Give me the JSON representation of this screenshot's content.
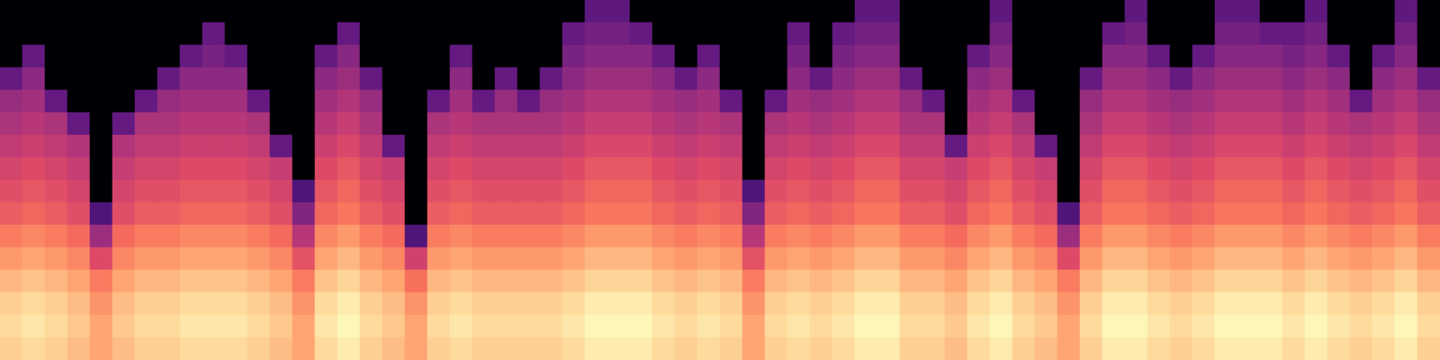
{
  "chart_data": {
    "type": "heatmap",
    "tick_labels": false,
    "xlim": [
      0,
      64
    ],
    "ylim": [
      0,
      16
    ],
    "zlim": [
      -80,
      0
    ],
    "cells": [
      [
        -80,
        -80,
        -80,
        -80,
        -80,
        -80,
        -80,
        -80,
        -80,
        -80,
        -80,
        -80,
        -80,
        -80,
        -80,
        -80,
        -80,
        -80,
        -80,
        -80,
        -80,
        -80,
        -80,
        -80,
        -80,
        -80,
        -57,
        -57,
        -80,
        -80,
        -80,
        -80,
        -80,
        -80,
        -80,
        -80,
        -80,
        -80,
        -57,
        -57,
        -80,
        -80,
        -80,
        -80,
        -57,
        -80,
        -80,
        -80,
        -80,
        -80,
        -57,
        -80,
        -80,
        -80,
        -57,
        -57,
        -80,
        -80,
        -57,
        -80,
        -80,
        -80,
        -57,
        -80
      ],
      [
        -80,
        -80,
        -80,
        -80,
        -80,
        -80,
        -80,
        -80,
        -80,
        -56,
        -80,
        -80,
        -80,
        -80,
        -80,
        -56,
        -80,
        -80,
        -80,
        -80,
        -80,
        -80,
        -80,
        -80,
        -80,
        -56,
        -53,
        -53,
        -56,
        -80,
        -80,
        -80,
        -80,
        -80,
        -80,
        -56,
        -80,
        -56,
        -53,
        -53,
        -80,
        -80,
        -80,
        -80,
        -53,
        -80,
        -80,
        -80,
        -80,
        -56,
        -53,
        -80,
        -80,
        -80,
        -53,
        -53,
        -56,
        -56,
        -53,
        -80,
        -80,
        -80,
        -53,
        -80
      ],
      [
        -80,
        -56,
        -80,
        -80,
        -80,
        -80,
        -80,
        -80,
        -56,
        -52,
        -56,
        -80,
        -80,
        -80,
        -56,
        -49,
        -80,
        -80,
        -80,
        -80,
        -56,
        -80,
        -80,
        -80,
        -80,
        -52,
        -49,
        -49,
        -49,
        -56,
        -80,
        -56,
        -80,
        -80,
        -80,
        -52,
        -80,
        -52,
        -49,
        -49,
        -80,
        -80,
        -80,
        -56,
        -49,
        -80,
        -80,
        -80,
        -80,
        -49,
        -49,
        -56,
        -80,
        -56,
        -49,
        -49,
        -49,
        -52,
        -49,
        -56,
        -80,
        -56,
        -49,
        -80
      ],
      [
        -56,
        -48,
        -80,
        -80,
        -80,
        -80,
        -80,
        -56,
        -48,
        -48,
        -48,
        -80,
        -80,
        -80,
        -48,
        -45,
        -56,
        -80,
        -80,
        -80,
        -48,
        -80,
        -56,
        -80,
        -56,
        -48,
        -45,
        -45,
        -45,
        -48,
        -56,
        -48,
        -80,
        -80,
        -80,
        -48,
        -56,
        -48,
        -45,
        -45,
        -56,
        -80,
        -80,
        -48,
        -45,
        -80,
        -80,
        -80,
        -56,
        -45,
        -45,
        -48,
        -56,
        -48,
        -45,
        -45,
        -45,
        -48,
        -45,
        -48,
        -80,
        -48,
        -45,
        -56
      ],
      [
        -46,
        -44,
        -56,
        -80,
        -80,
        -80,
        -56,
        -46,
        -44,
        -44,
        -44,
        -56,
        -80,
        -80,
        -44,
        -41,
        -46,
        -80,
        -80,
        -56,
        -44,
        -56,
        -46,
        -56,
        -46,
        -44,
        -41,
        -41,
        -41,
        -44,
        -46,
        -44,
        -56,
        -80,
        -56,
        -44,
        -46,
        -44,
        -41,
        -41,
        -46,
        -56,
        -80,
        -44,
        -41,
        -56,
        -80,
        -80,
        -46,
        -41,
        -41,
        -44,
        -46,
        -44,
        -41,
        -41,
        -41,
        -44,
        -41,
        -44,
        -56,
        -44,
        -41,
        -46
      ],
      [
        -42,
        -40,
        -42,
        -56,
        -80,
        -56,
        -42,
        -42,
        -40,
        -40,
        -40,
        -42,
        -80,
        -80,
        -40,
        -37,
        -42,
        -80,
        -80,
        -42,
        -40,
        -42,
        -42,
        -42,
        -42,
        -40,
        -37,
        -37,
        -37,
        -40,
        -42,
        -40,
        -42,
        -80,
        -42,
        -40,
        -42,
        -40,
        -37,
        -37,
        -42,
        -42,
        -80,
        -40,
        -37,
        -42,
        -80,
        -80,
        -42,
        -37,
        -37,
        -40,
        -42,
        -40,
        -37,
        -37,
        -37,
        -40,
        -37,
        -40,
        -42,
        -40,
        -37,
        -42
      ],
      [
        -38,
        -36,
        -38,
        -41,
        -80,
        -41,
        -38,
        -38,
        -36,
        -36,
        -36,
        -38,
        -56,
        -80,
        -36,
        -33,
        -38,
        -56,
        -80,
        -38,
        -36,
        -38,
        -38,
        -38,
        -38,
        -36,
        -33,
        -33,
        -33,
        -36,
        -38,
        -36,
        -38,
        -80,
        -38,
        -36,
        -38,
        -36,
        -33,
        -33,
        -38,
        -38,
        -56,
        -36,
        -33,
        -38,
        -56,
        -80,
        -38,
        -33,
        -33,
        -36,
        -38,
        -36,
        -33,
        -33,
        -33,
        -36,
        -33,
        -36,
        -38,
        -36,
        -33,
        -38
      ],
      [
        -34,
        -32,
        -34,
        -37,
        -80,
        -37,
        -34,
        -34,
        -32,
        -32,
        -32,
        -34,
        -37,
        -80,
        -32,
        -29,
        -34,
        -37,
        -80,
        -34,
        -32,
        -34,
        -34,
        -34,
        -34,
        -32,
        -29,
        -29,
        -29,
        -32,
        -34,
        -32,
        -34,
        -80,
        -34,
        -32,
        -34,
        -32,
        -29,
        -29,
        -34,
        -34,
        -37,
        -32,
        -29,
        -34,
        -37,
        -80,
        -34,
        -29,
        -29,
        -32,
        -34,
        -32,
        -29,
        -29,
        -29,
        -32,
        -29,
        -32,
        -34,
        -32,
        -29,
        -34
      ],
      [
        -31,
        -29,
        -31,
        -34,
        -80,
        -34,
        -31,
        -31,
        -29,
        -29,
        -29,
        -31,
        -34,
        -60,
        -29,
        -26,
        -31,
        -34,
        -80,
        -31,
        -29,
        -31,
        -31,
        -31,
        -31,
        -29,
        -26,
        -26,
        -26,
        -29,
        -31,
        -29,
        -31,
        -60,
        -31,
        -29,
        -31,
        -29,
        -26,
        -26,
        -31,
        -31,
        -34,
        -29,
        -26,
        -31,
        -34,
        -80,
        -31,
        -26,
        -26,
        -29,
        -31,
        -29,
        -26,
        -26,
        -26,
        -29,
        -26,
        -29,
        -31,
        -29,
        -26,
        -31
      ],
      [
        -28,
        -26,
        -28,
        -31,
        -60,
        -31,
        -28,
        -28,
        -26,
        -26,
        -26,
        -28,
        -31,
        -50,
        -26,
        -23,
        -28,
        -31,
        -80,
        -28,
        -26,
        -28,
        -28,
        -28,
        -28,
        -26,
        -23,
        -23,
        -23,
        -26,
        -28,
        -26,
        -28,
        -50,
        -28,
        -26,
        -28,
        -26,
        -23,
        -23,
        -28,
        -28,
        -31,
        -26,
        -23,
        -28,
        -31,
        -60,
        -28,
        -23,
        -23,
        -26,
        -28,
        -26,
        -23,
        -23,
        -23,
        -26,
        -23,
        -26,
        -28,
        -26,
        -23,
        -28
      ],
      [
        -22,
        -20,
        -22,
        -25,
        -45,
        -25,
        -22,
        -22,
        -20,
        -20,
        -20,
        -22,
        -25,
        -40,
        -20,
        -17,
        -22,
        -25,
        -60,
        -22,
        -20,
        -22,
        -22,
        -22,
        -22,
        -20,
        -17,
        -17,
        -17,
        -20,
        -22,
        -20,
        -22,
        -40,
        -22,
        -20,
        -22,
        -20,
        -17,
        -17,
        -22,
        -22,
        -25,
        -20,
        -17,
        -22,
        -25,
        -45,
        -22,
        -17,
        -17,
        -20,
        -22,
        -20,
        -17,
        -17,
        -17,
        -20,
        -17,
        -20,
        -22,
        -20,
        -17,
        -22
      ],
      [
        -17,
        -15,
        -17,
        -20,
        -32,
        -20,
        -17,
        -17,
        -15,
        -15,
        -15,
        -17,
        -20,
        -30,
        -15,
        -12,
        -17,
        -20,
        -35,
        -17,
        -15,
        -17,
        -17,
        -17,
        -17,
        -15,
        -12,
        -12,
        -12,
        -15,
        -17,
        -15,
        -17,
        -30,
        -17,
        -15,
        -17,
        -15,
        -12,
        -12,
        -17,
        -17,
        -20,
        -15,
        -12,
        -17,
        -20,
        -32,
        -17,
        -12,
        -12,
        -15,
        -17,
        -15,
        -12,
        -12,
        -12,
        -15,
        -12,
        -15,
        -17,
        -15,
        -12,
        -17
      ],
      [
        -12,
        -10,
        -12,
        -15,
        -22,
        -15,
        -12,
        -12,
        -10,
        -10,
        -10,
        -12,
        -15,
        -22,
        -10,
        -7,
        -12,
        -15,
        -24,
        -12,
        -10,
        -12,
        -12,
        -12,
        -12,
        -10,
        -7,
        -7,
        -7,
        -10,
        -12,
        -10,
        -12,
        -22,
        -12,
        -10,
        -12,
        -10,
        -7,
        -7,
        -12,
        -12,
        -15,
        -10,
        -7,
        -12,
        -15,
        -22,
        -12,
        -7,
        -7,
        -10,
        -12,
        -10,
        -7,
        -7,
        -7,
        -10,
        -7,
        -10,
        -12,
        -10,
        -7,
        -12
      ],
      [
        -8,
        -6,
        -8,
        -11,
        -18,
        -11,
        -8,
        -8,
        -6,
        -6,
        -6,
        -8,
        -11,
        -18,
        -6,
        -3,
        -8,
        -11,
        -18,
        -8,
        -6,
        -8,
        -8,
        -8,
        -8,
        -6,
        -3,
        -3,
        -3,
        -6,
        -8,
        -6,
        -8,
        -18,
        -8,
        -6,
        -8,
        -6,
        -3,
        -3,
        -8,
        -8,
        -11,
        -6,
        -3,
        -8,
        -11,
        -18,
        -8,
        -3,
        -3,
        -6,
        -8,
        -6,
        -3,
        -3,
        -3,
        -6,
        -3,
        -6,
        -8,
        -6,
        -3,
        -8
      ],
      [
        -6,
        -4,
        -6,
        -9,
        -15,
        -9,
        -6,
        -6,
        -4,
        -4,
        -4,
        -6,
        -9,
        -15,
        -4,
        -1,
        -6,
        -9,
        -15,
        -6,
        -4,
        -6,
        -6,
        -6,
        -6,
        -4,
        -1,
        -1,
        -1,
        -4,
        -6,
        -4,
        -6,
        -15,
        -6,
        -4,
        -6,
        -4,
        -1,
        -1,
        -6,
        -6,
        -9,
        -4,
        -1,
        -6,
        -9,
        -15,
        -6,
        -1,
        -1,
        -4,
        -6,
        -4,
        -1,
        -1,
        -1,
        -4,
        -1,
        -4,
        -6,
        -4,
        -1,
        -6
      ],
      [
        -8,
        -6,
        -8,
        -11,
        -15,
        -11,
        -8,
        -8,
        -6,
        -6,
        -6,
        -8,
        -11,
        -15,
        -6,
        -3,
        -8,
        -11,
        -15,
        -8,
        -6,
        -8,
        -8,
        -8,
        -8,
        -6,
        -3,
        -3,
        -3,
        -6,
        -8,
        -6,
        -8,
        -15,
        -8,
        -6,
        -8,
        -6,
        -3,
        -3,
        -8,
        -8,
        -11,
        -6,
        -3,
        -8,
        -11,
        -15,
        -8,
        -3,
        -3,
        -6,
        -8,
        -6,
        -3,
        -3,
        -3,
        -6,
        -3,
        -6,
        -8,
        -6,
        -3,
        -8
      ]
    ]
  }
}
